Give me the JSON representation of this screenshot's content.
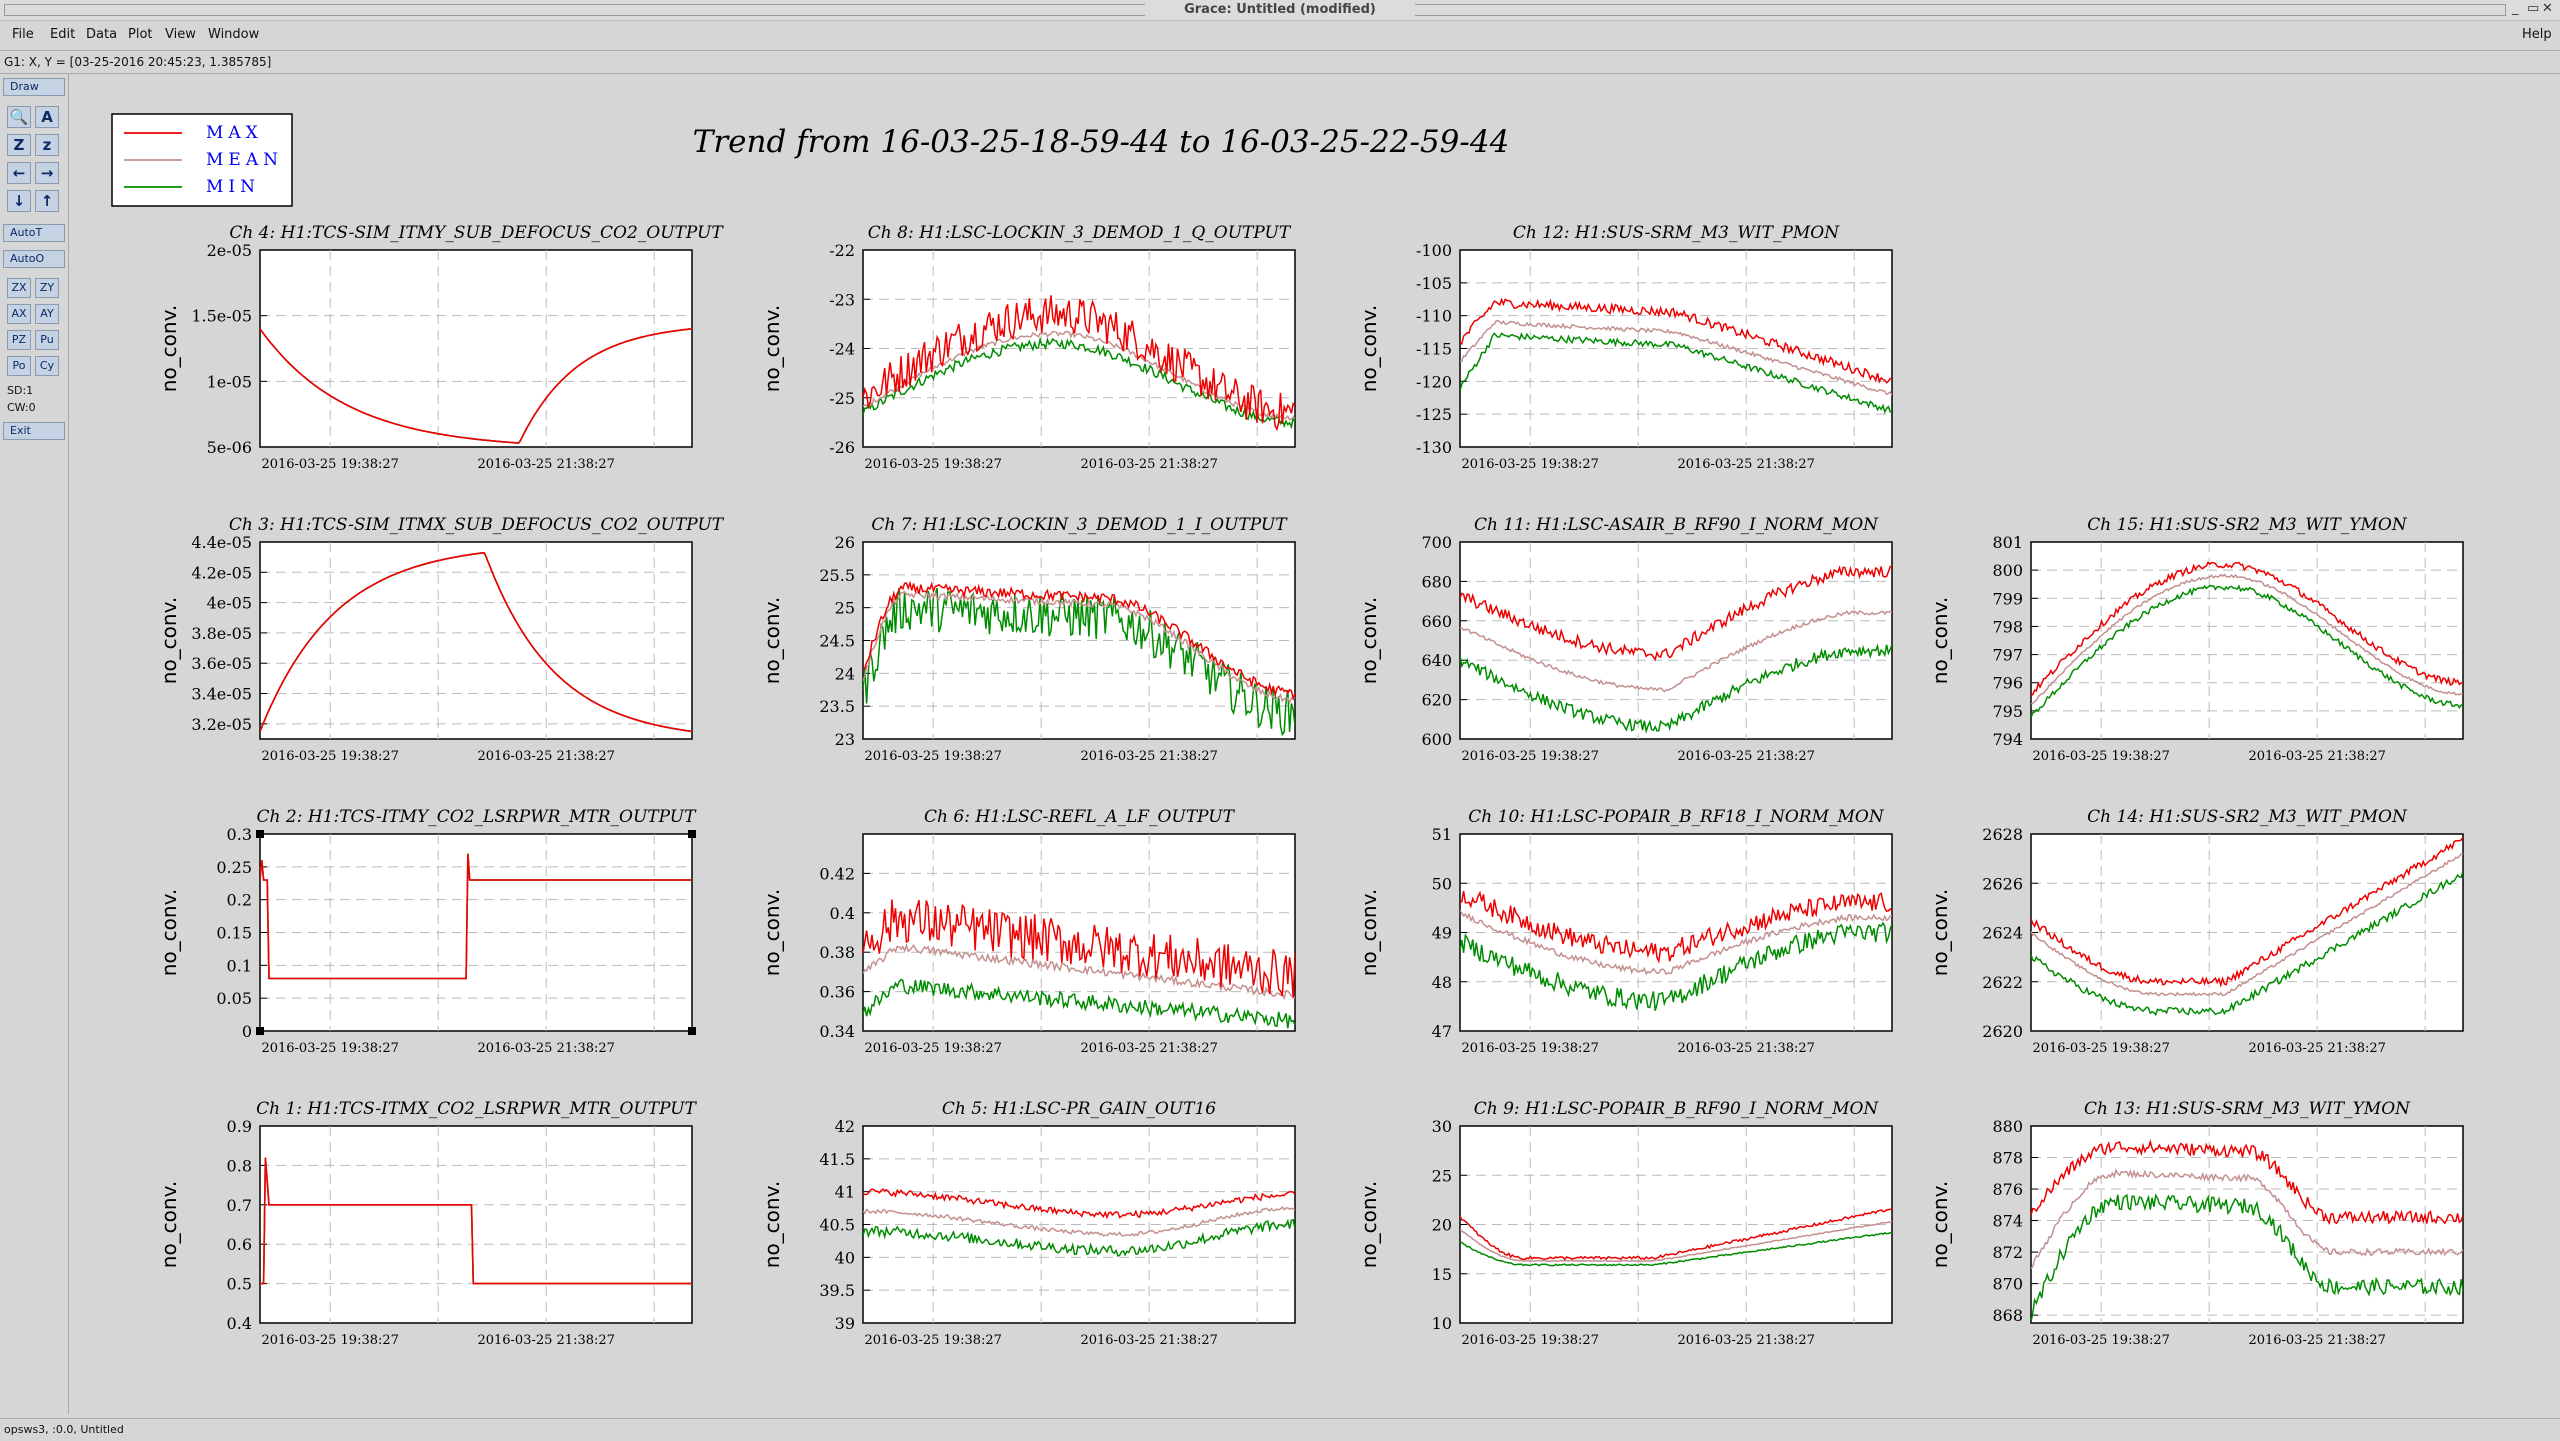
{
  "window": {
    "title": "Grace: Untitled (modified)",
    "controls": [
      "_",
      "▭",
      "✕"
    ]
  },
  "menubar": {
    "items": [
      "File",
      "Edit",
      "Data",
      "Plot",
      "View",
      "Window"
    ],
    "help": "Help"
  },
  "coords": "G1: X, Y = [03-25-2016 20:45:23, 1.385785]",
  "toolbar": {
    "draw": "Draw",
    "icons": [
      "zoom-icon",
      "autoscale-text-icon",
      "zoom-z-icon",
      "zoom-z-small-icon",
      "arrow-left-icon",
      "arrow-right-icon",
      "arrow-down-icon",
      "arrow-up-icon"
    ],
    "icon_glyphs": [
      "🔍",
      "A",
      "Z",
      "z",
      "←",
      "→",
      "↓",
      "↑"
    ],
    "autot": "AutoT",
    "autoo": "AutoO",
    "small": [
      "ZX",
      "ZY",
      "AX",
      "AY",
      "PZ",
      "Pu",
      "Po",
      "Cy"
    ],
    "sd": "SD:1",
    "cw": "CW:0",
    "exit": "Exit"
  },
  "status": "opsws3, :0.0, Untitled",
  "main_title": "Trend from 16-03-25-18-59-44 to 16-03-25-22-59-44",
  "legend": [
    {
      "label": "MAX",
      "color": "#ee0000"
    },
    {
      "label": "MEAN",
      "color": "#c49090"
    },
    {
      "label": "MIN",
      "color": "#008c00"
    }
  ],
  "legend_text_color": "#0000ee",
  "colors": {
    "max": "#ee0000",
    "mean": "#c49090",
    "min": "#008c00"
  },
  "chart_data": [
    {
      "type": "line",
      "title": "Ch 4: H1:TCS-SIM_ITMY_SUB_DEFOCUS_CO2_OUTPUT",
      "ylabel": "no_conv.",
      "xlabel": "",
      "x_ticks": [
        "2016-03-25 19:38:27",
        "2016-03-25 21:38:27"
      ],
      "y_ticks": [
        "2e-05",
        "1.5e-05",
        "1e-05",
        "5e-06"
      ],
      "ylim": [
        5e-06,
        2e-05
      ],
      "xlim": [
        "2016-03-25 18:59:44",
        "2016-03-25 22:59:44"
      ],
      "grid": true,
      "legend": "top-left",
      "series": [
        {
          "name": "MAX",
          "shape": "defocus_y",
          "start": 1.4e-05,
          "min": 5.3e-06,
          "end": 1.4e-05,
          "noise": 0
        }
      ]
    },
    {
      "type": "line",
      "title": "Ch 8: H1:LSC-LOCKIN_3_DEMOD_1_Q_OUTPUT",
      "ylabel": "no_conv.",
      "xlabel": "",
      "x_ticks": [
        "2016-03-25 19:38:27",
        "2016-03-25 21:38:27"
      ],
      "y_ticks": [
        "-22",
        "-23",
        "-24",
        "-25",
        "-26"
      ],
      "ylim": [
        -26,
        -22
      ],
      "xlim": [
        "2016-03-25 18:59:44",
        "2016-03-25 22:59:44"
      ],
      "grid": true,
      "legend": "top-left",
      "series": [
        {
          "name": "MAX",
          "shape": "hump",
          "start": -25.0,
          "peak": -23.3,
          "end": -25.3,
          "noise": 0.4
        },
        {
          "name": "MEAN",
          "shape": "hump",
          "start": -25.2,
          "peak": -23.7,
          "end": -25.4,
          "noise": 0.05
        },
        {
          "name": "MIN",
          "shape": "hump",
          "start": -25.3,
          "peak": -23.9,
          "end": -25.5,
          "noise": 0.1
        }
      ]
    },
    {
      "type": "line",
      "title": "Ch 12: H1:SUS-SRM_M3_WIT_PMON",
      "ylabel": "no_conv.",
      "xlabel": "",
      "x_ticks": [
        "2016-03-25 19:38:27",
        "2016-03-25 21:38:27"
      ],
      "y_ticks": [
        "-100",
        "-105",
        "-110",
        "-115",
        "-120",
        "-125",
        "-130"
      ],
      "ylim": [
        -130,
        -100
      ],
      "xlim": [
        "2016-03-25 18:59:44",
        "2016-03-25 22:59:44"
      ],
      "grid": true,
      "legend": "top-left",
      "series": [
        {
          "name": "MAX",
          "shape": "plateau_decline",
          "start": -114,
          "peak": -108,
          "end": -120,
          "noise": 0.7
        },
        {
          "name": "MEAN",
          "shape": "plateau_decline",
          "start": -117,
          "peak": -111,
          "end": -122,
          "noise": 0.3
        },
        {
          "name": "MIN",
          "shape": "plateau_decline",
          "start": -121,
          "peak": -113,
          "end": -124.5,
          "noise": 0.5
        }
      ]
    },
    {
      "type": "line",
      "title": "Ch 3: H1:TCS-SIM_ITMX_SUB_DEFOCUS_CO2_OUTPUT",
      "ylabel": "no_conv.",
      "xlabel": "",
      "x_ticks": [
        "2016-03-25 19:38:27",
        "2016-03-25 21:38:27"
      ],
      "y_ticks": [
        "4.4e-05",
        "4.2e-05",
        "4e-05",
        "3.8e-05",
        "3.6e-05",
        "3.4e-05",
        "3.2e-05"
      ],
      "ylim": [
        3.1e-05,
        4.4e-05
      ],
      "xlim": [
        "2016-03-25 18:59:44",
        "2016-03-25 22:59:44"
      ],
      "grid": true,
      "legend": "top-left",
      "series": [
        {
          "name": "MAX",
          "shape": "defocus_x",
          "start": 3.15e-05,
          "peak": 4.33e-05,
          "end": 3.15e-05,
          "noise": 0
        }
      ]
    },
    {
      "type": "line",
      "title": "Ch 7: H1:LSC-LOCKIN_3_DEMOD_1_I_OUTPUT",
      "ylabel": "no_conv.",
      "xlabel": "",
      "x_ticks": [
        "2016-03-25 19:38:27",
        "2016-03-25 21:38:27"
      ],
      "y_ticks": [
        "26",
        "25.5",
        "25",
        "24.5",
        "24",
        "23.5",
        "23"
      ],
      "ylim": [
        23,
        26
      ],
      "xlim": [
        "2016-03-25 18:59:44",
        "2016-03-25 22:59:44"
      ],
      "grid": true,
      "legend": "top-left",
      "series": [
        {
          "name": "MAX",
          "shape": "plateau_decline2",
          "start": 24.0,
          "peak": 25.3,
          "end": 23.7,
          "noise": 0.08
        },
        {
          "name": "MEAN",
          "shape": "plateau_decline2",
          "start": 23.9,
          "peak": 25.2,
          "end": 23.6,
          "noise": 0.05
        },
        {
          "name": "MIN",
          "shape": "plateau_decline2",
          "start": 23.7,
          "peak": 25.0,
          "end": 23.4,
          "noise": 0.35
        }
      ]
    },
    {
      "type": "line",
      "title": "Ch 11: H1:LSC-ASAIR_B_RF90_I_NORM_MON",
      "ylabel": "no_conv.",
      "xlabel": "",
      "x_ticks": [
        "2016-03-25 19:38:27",
        "2016-03-25 21:38:27"
      ],
      "y_ticks": [
        "700",
        "680",
        "660",
        "640",
        "620",
        "600"
      ],
      "ylim": [
        600,
        700
      ],
      "xlim": [
        "2016-03-25 18:59:44",
        "2016-03-25 22:59:44"
      ],
      "grid": true,
      "legend": "top-left",
      "series": [
        {
          "name": "MAX",
          "shape": "valley",
          "start": 673,
          "min": 643,
          "end": 685,
          "noise": 3
        },
        {
          "name": "MEAN",
          "shape": "valley",
          "start": 657,
          "min": 625,
          "end": 664,
          "noise": 1
        },
        {
          "name": "MIN",
          "shape": "valley",
          "start": 640,
          "min": 606,
          "end": 645,
          "noise": 3
        }
      ]
    },
    {
      "type": "line",
      "title": "Ch 15: H1:SUS-SR2_M3_WIT_YMON",
      "ylabel": "no_conv.",
      "xlabel": "",
      "x_ticks": [
        "2016-03-25 19:38:27",
        "2016-03-25 21:38:27"
      ],
      "y_ticks": [
        "801",
        "800",
        "799",
        "798",
        "797",
        "796",
        "795",
        "794"
      ],
      "ylim": [
        794,
        801
      ],
      "xlim": [
        "2016-03-25 18:59:44",
        "2016-03-25 22:59:44"
      ],
      "grid": true,
      "legend": "top-left",
      "series": [
        {
          "name": "MAX",
          "shape": "hump",
          "start": 795.6,
          "peak": 800.2,
          "end": 796.0,
          "noise": 0.12
        },
        {
          "name": "MEAN",
          "shape": "hump",
          "start": 795.2,
          "peak": 799.8,
          "end": 795.6,
          "noise": 0.05
        },
        {
          "name": "MIN",
          "shape": "hump",
          "start": 794.8,
          "peak": 799.4,
          "end": 795.2,
          "noise": 0.1
        }
      ]
    },
    {
      "type": "line",
      "title": "Ch 2: H1:TCS-ITMY_CO2_LSRPWR_MTR_OUTPUT",
      "ylabel": "no_conv.",
      "xlabel": "",
      "x_ticks": [
        "2016-03-25 19:38:27",
        "2016-03-25 21:38:27"
      ],
      "y_ticks": [
        "0.3",
        "0.25",
        "0.2",
        "0.15",
        "0.1",
        "0.05",
        "0"
      ],
      "ylim": [
        0,
        0.3
      ],
      "xlim": [
        "2016-03-25 18:59:44",
        "2016-03-25 22:59:44"
      ],
      "grid": true,
      "legend": "top-left",
      "series": [
        {
          "name": "MAX",
          "shape": "step2",
          "start": 0.23,
          "low": 0.08,
          "end": 0.23,
          "noise": 0
        }
      ]
    },
    {
      "type": "line",
      "title": "Ch 6: H1:LSC-REFL_A_LF_OUTPUT",
      "ylabel": "no_conv.",
      "xlabel": "",
      "x_ticks": [
        "2016-03-25 19:38:27",
        "2016-03-25 21:38:27"
      ],
      "y_ticks": [
        "0.42",
        "0.4",
        "0.38",
        "0.36",
        "0.34"
      ],
      "ylim": [
        0.34,
        0.44
      ],
      "xlim": [
        "2016-03-25 18:59:44",
        "2016-03-25 22:59:44"
      ],
      "grid": true,
      "legend": "top-left",
      "series": [
        {
          "name": "MAX",
          "shape": "decline",
          "start": 0.4,
          "end": 0.368,
          "noise": 0.012
        },
        {
          "name": "MEAN",
          "shape": "decline",
          "start": 0.385,
          "end": 0.358,
          "noise": 0.002
        },
        {
          "name": "MIN",
          "shape": "decline",
          "start": 0.365,
          "end": 0.345,
          "noise": 0.004
        }
      ]
    },
    {
      "type": "line",
      "title": "Ch 10: H1:LSC-POPAIR_B_RF18_I_NORM_MON",
      "ylabel": "no_conv.",
      "xlabel": "",
      "x_ticks": [
        "2016-03-25 19:38:27",
        "2016-03-25 21:38:27"
      ],
      "y_ticks": [
        "51",
        "50",
        "49",
        "48",
        "47"
      ],
      "ylim": [
        47,
        51
      ],
      "xlim": [
        "2016-03-25 18:59:44",
        "2016-03-25 22:59:44"
      ],
      "grid": true,
      "legend": "top-left",
      "series": [
        {
          "name": "MAX",
          "shape": "valley",
          "start": 49.8,
          "min": 48.6,
          "end": 49.6,
          "noise": 0.2
        },
        {
          "name": "MEAN",
          "shape": "valley",
          "start": 49.4,
          "min": 48.2,
          "end": 49.3,
          "noise": 0.06
        },
        {
          "name": "MIN",
          "shape": "valley",
          "start": 48.8,
          "min": 47.6,
          "end": 49.0,
          "noise": 0.2
        }
      ]
    },
    {
      "type": "line",
      "title": "Ch 14: H1:SUS-SR2_M3_WIT_PMON",
      "ylabel": "no_conv.",
      "xlabel": "",
      "x_ticks": [
        "2016-03-25 19:38:27",
        "2016-03-25 21:38:27"
      ],
      "y_ticks": [
        "2628",
        "2626",
        "2624",
        "2622",
        "2620"
      ],
      "ylim": [
        2620,
        2628
      ],
      "xlim": [
        "2016-03-25 18:59:44",
        "2016-03-25 22:59:44"
      ],
      "grid": true,
      "legend": "top-left",
      "series": [
        {
          "name": "MAX",
          "shape": "valley_rise",
          "start": 2624.5,
          "min": 2622.0,
          "end": 2627.8,
          "noise": 0.15
        },
        {
          "name": "MEAN",
          "shape": "valley_rise",
          "start": 2624.0,
          "min": 2621.5,
          "end": 2627.2,
          "noise": 0.06
        },
        {
          "name": "MIN",
          "shape": "valley_rise",
          "start": 2623.0,
          "min": 2620.8,
          "end": 2626.4,
          "noise": 0.15
        }
      ]
    },
    {
      "type": "line",
      "title": "Ch 1: H1:TCS-ITMX_CO2_LSRPWR_MTR_OUTPUT",
      "ylabel": "no_conv.",
      "xlabel": "",
      "x_ticks": [
        "2016-03-25 19:38:27",
        "2016-03-25 21:38:27"
      ],
      "y_ticks": [
        "0.9",
        "0.8",
        "0.7",
        "0.6",
        "0.5",
        "0.4"
      ],
      "ylim": [
        0.4,
        0.9
      ],
      "xlim": [
        "2016-03-25 18:59:44",
        "2016-03-25 22:59:44"
      ],
      "grid": true,
      "legend": "top-left",
      "series": [
        {
          "name": "MAX",
          "shape": "step1",
          "high": 0.7,
          "low": 0.5,
          "noise": 0
        }
      ]
    },
    {
      "type": "line",
      "title": "Ch 5: H1:LSC-PR_GAIN_OUT16",
      "ylabel": "no_conv.",
      "xlabel": "",
      "x_ticks": [
        "2016-03-25 19:38:27",
        "2016-03-25 21:38:27"
      ],
      "y_ticks": [
        "42",
        "41.5",
        "41",
        "40.5",
        "40",
        "39.5",
        "39"
      ],
      "ylim": [
        39,
        42
      ],
      "xlim": [
        "2016-03-25 18:59:44",
        "2016-03-25 22:59:44"
      ],
      "grid": true,
      "legend": "top-left",
      "series": [
        {
          "name": "MAX",
          "shape": "shallow",
          "start": 41.0,
          "min": 40.65,
          "end": 40.95,
          "noise": 0.05
        },
        {
          "name": "MEAN",
          "shape": "shallow",
          "start": 40.7,
          "min": 40.35,
          "end": 40.75,
          "noise": 0.03
        },
        {
          "name": "MIN",
          "shape": "shallow",
          "start": 40.4,
          "min": 40.1,
          "end": 40.5,
          "noise": 0.08
        }
      ]
    },
    {
      "type": "line",
      "title": "Ch 9: H1:LSC-POPAIR_B_RF90_I_NORM_MON",
      "ylabel": "no_conv.",
      "xlabel": "",
      "x_ticks": [
        "2016-03-25 19:38:27",
        "2016-03-25 21:38:27"
      ],
      "y_ticks": [
        "30",
        "25",
        "20",
        "15",
        "10"
      ],
      "ylim": [
        10,
        30
      ],
      "xlim": [
        "2016-03-25 18:59:44",
        "2016-03-25 22:59:44"
      ],
      "grid": true,
      "legend": "top-left",
      "series": [
        {
          "name": "MAX",
          "shape": "dip_rise",
          "start": 20.8,
          "min": 16.6,
          "end": 21.6,
          "noise": 0.15
        },
        {
          "name": "MEAN",
          "shape": "dip_rise",
          "start": 19.5,
          "min": 16.3,
          "end": 20.3,
          "noise": 0.05
        },
        {
          "name": "MIN",
          "shape": "dip_rise",
          "start": 18.2,
          "min": 15.9,
          "end": 19.2,
          "noise": 0.08
        }
      ]
    },
    {
      "type": "line",
      "title": "Ch 13: H1:SUS-SRM_M3_WIT_YMON",
      "ylabel": "no_conv.",
      "xlabel": "",
      "x_ticks": [
        "2016-03-25 19:38:27",
        "2016-03-25 21:38:27"
      ],
      "y_ticks": [
        "880",
        "878",
        "876",
        "874",
        "872",
        "870",
        "868"
      ],
      "ylim": [
        867.5,
        880
      ],
      "xlim": [
        "2016-03-25 18:59:44",
        "2016-03-25 22:59:44"
      ],
      "grid": true,
      "legend": "top-left",
      "series": [
        {
          "name": "MAX",
          "shape": "hump_decline",
          "start": 874.5,
          "peak": 878.7,
          "end": 874.2,
          "noise": 0.4
        },
        {
          "name": "MEAN",
          "shape": "hump_decline",
          "start": 871.0,
          "peak": 877.0,
          "end": 872.0,
          "noise": 0.2
        },
        {
          "name": "MIN",
          "shape": "hump_decline",
          "start": 868.0,
          "peak": 875.2,
          "end": 869.8,
          "noise": 0.5
        }
      ]
    }
  ]
}
